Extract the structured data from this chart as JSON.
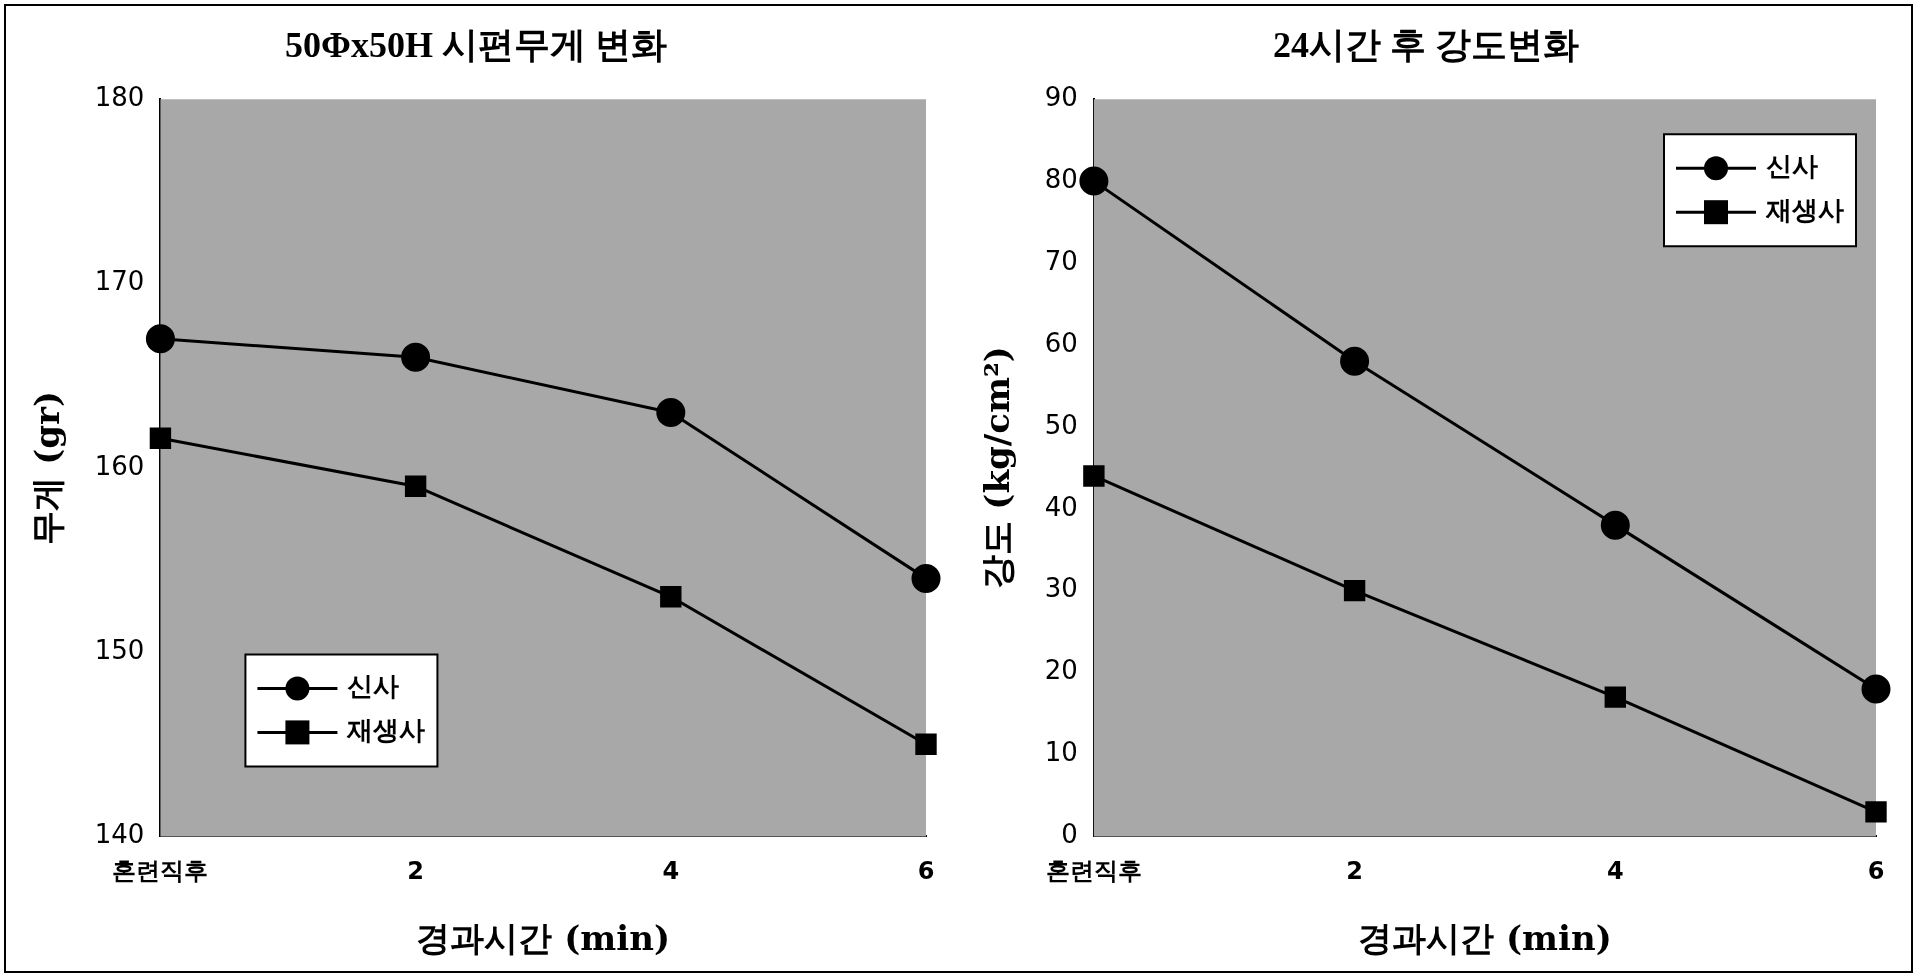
{
  "chart_data": [
    {
      "type": "line",
      "title": "50Φx50H 시편무게 변화",
      "xlabel": "경과시간 (min)",
      "ylabel": "무게 (gr)",
      "categories": [
        "혼련직후",
        "2",
        "4",
        "6"
      ],
      "ylim": [
        140,
        180
      ],
      "yticks": [
        140,
        150,
        160,
        170,
        180
      ],
      "grid": false,
      "legend": "bottom left",
      "series": [
        {
          "name": "신사",
          "color": "#000000",
          "marker": "circle",
          "values": [
            167,
            166,
            163,
            154
          ]
        },
        {
          "name": "재생사",
          "color": "#000000",
          "marker": "square",
          "values": [
            161.6,
            159,
            153,
            145
          ]
        }
      ]
    },
    {
      "type": "line",
      "title": "24시간 후 강도변화",
      "xlabel": "경과시간 (min)",
      "ylabel": "강도 (kg/cm²)",
      "categories": [
        "혼련직후",
        "2",
        "4",
        "6"
      ],
      "ylim": [
        0,
        90
      ],
      "yticks": [
        0,
        10,
        20,
        30,
        40,
        50,
        60,
        70,
        80,
        90
      ],
      "grid": false,
      "legend": "top right",
      "series": [
        {
          "name": "신사",
          "color": "#000000",
          "marker": "circle",
          "values": [
            80,
            58,
            38,
            18
          ]
        },
        {
          "name": "재생사",
          "color": "#000000",
          "marker": "square",
          "values": [
            44,
            30,
            17,
            3
          ]
        }
      ]
    }
  ]
}
